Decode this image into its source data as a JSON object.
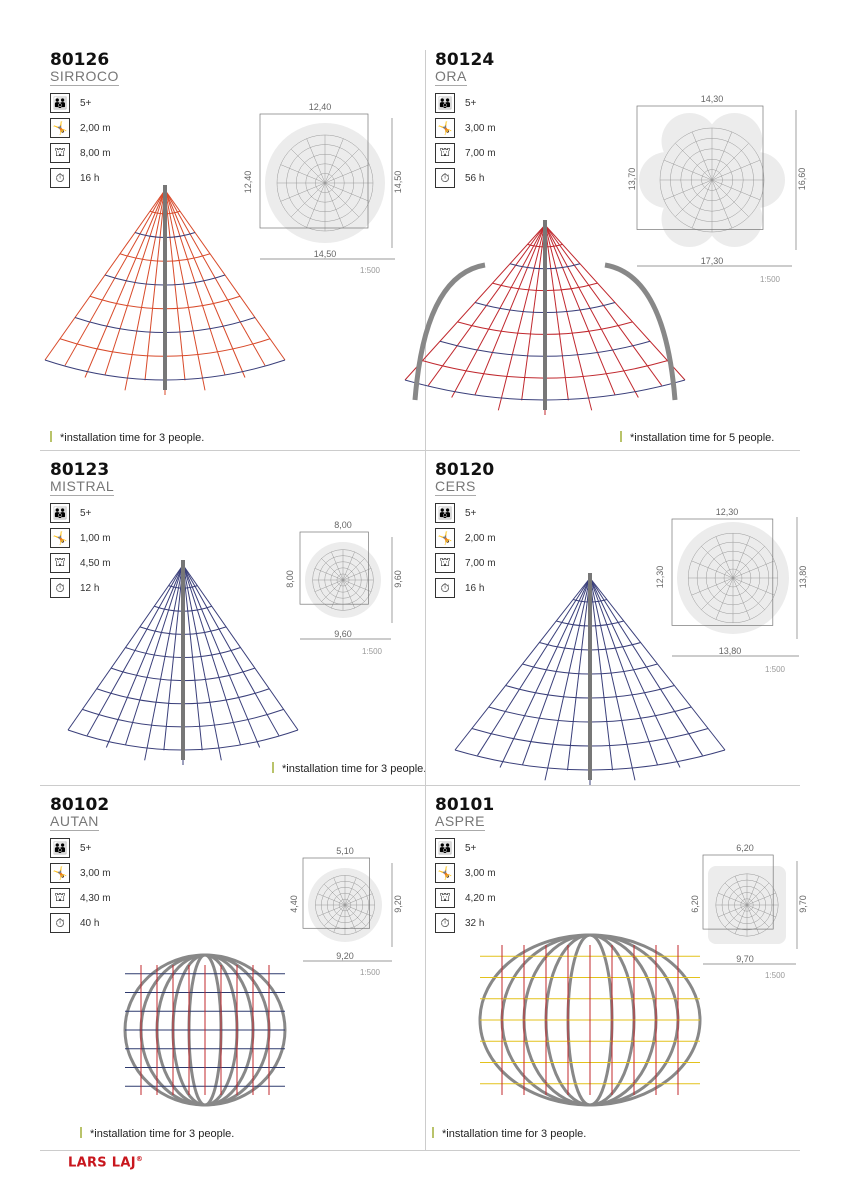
{
  "products": [
    {
      "code": "80126",
      "name": "SIRROCO",
      "age": "5+",
      "fall_height": "2,00 m",
      "free_height": "8,00 m",
      "install_time": "16 h",
      "plan": {
        "top": "12,40",
        "left": "12,40",
        "right": "14,50",
        "bottom": "14,50",
        "scale": "1:500"
      },
      "footnote": "*installation time for 3 people.",
      "net_color": "#d84a2a"
    },
    {
      "code": "80124",
      "name": "ORA",
      "age": "5+",
      "fall_height": "3,00 m",
      "free_height": "7,00 m",
      "install_time": "56 h",
      "plan": {
        "top": "14,30",
        "left": "13,70",
        "right": "16,60",
        "bottom": "17,30",
        "scale": "1:500"
      },
      "footnote": "*installation time for 5 people.",
      "net_color": "#c0282e"
    },
    {
      "code": "80123",
      "name": "MISTRAL",
      "age": "5+",
      "fall_height": "1,00 m",
      "free_height": "4,50 m",
      "install_time": "12 h",
      "plan": {
        "top": "8,00",
        "left": "8,00",
        "right": "9,60",
        "bottom": "9,60",
        "scale": "1:500"
      },
      "footnote": "*installation time for 3 people.",
      "net_color": "#3a3f7a"
    },
    {
      "code": "80120",
      "name": "CERS",
      "age": "5+",
      "fall_height": "2,00 m",
      "free_height": "7,00 m",
      "install_time": "16 h",
      "plan": {
        "top": "12,30",
        "left": "12,30",
        "right": "13,80",
        "bottom": "13,80",
        "scale": "1:500"
      },
      "footnote": "",
      "net_color": "#3a3f7a"
    },
    {
      "code": "80102",
      "name": "AUTAN",
      "age": "5+",
      "fall_height": "3,00 m",
      "free_height": "4,30 m",
      "install_time": "40 h",
      "plan": {
        "top": "5,10",
        "left": "4,40",
        "right": "9,20",
        "bottom": "9,20",
        "scale": "1:500"
      },
      "footnote": "*installation time for 3 people.",
      "net_color": "#2e3a6e"
    },
    {
      "code": "80101",
      "name": "ASPRE",
      "age": "5+",
      "fall_height": "3,00 m",
      "free_height": "4,20 m",
      "install_time": "32 h",
      "plan": {
        "top": "6,20",
        "left": "6,20",
        "right": "9,70",
        "bottom": "9,70",
        "scale": "1:500"
      },
      "footnote": "*installation time for 3 people.",
      "net_color": "#e3c21c"
    }
  ],
  "icons": [
    "age-icon",
    "fall-height-icon",
    "free-height-icon",
    "install-time-icon"
  ],
  "brand": {
    "logo": "LARS LAJ",
    "mark": "®",
    "color": "#c8161d"
  }
}
